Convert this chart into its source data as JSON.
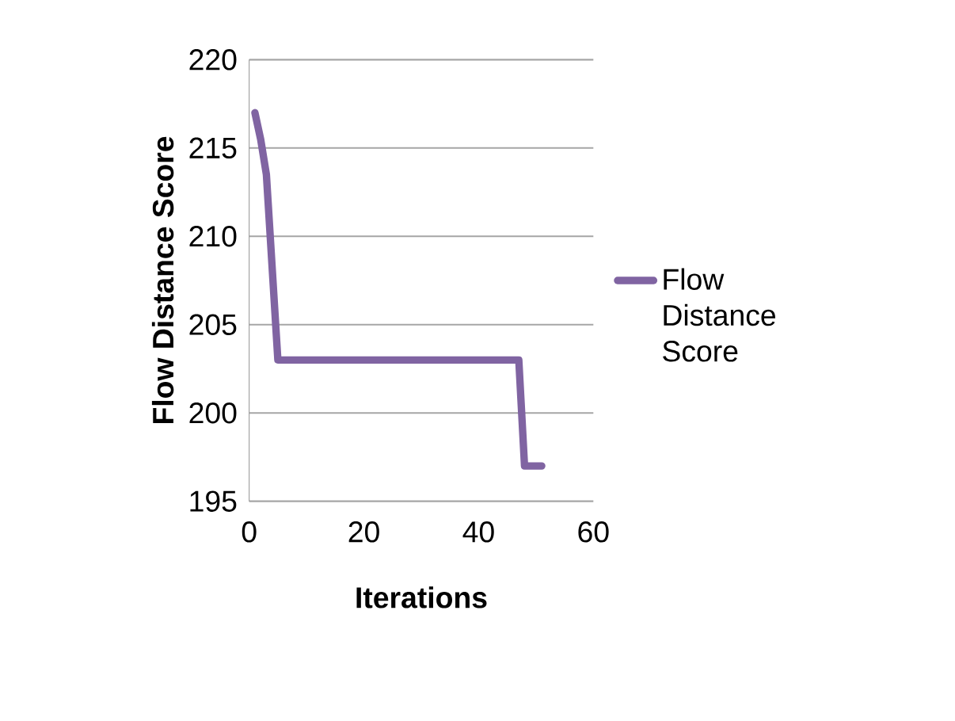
{
  "chart_data": {
    "type": "line",
    "xlabel": "Iterations",
    "ylabel": "Flow Distance Score",
    "series": [
      {
        "name": "Flow Distance Score",
        "color": "#8064a2",
        "x": [
          1,
          2,
          3,
          5,
          47,
          48,
          51
        ],
        "values": [
          217,
          215.5,
          213.5,
          203,
          203,
          197,
          197
        ]
      }
    ],
    "xlim": [
      0,
      60
    ],
    "xticks": [
      0,
      20,
      40,
      60
    ],
    "ylim": [
      195,
      220
    ],
    "yticks": [
      195,
      200,
      205,
      210,
      215,
      220
    ],
    "grid": "y",
    "legend": "right",
    "marker": "none",
    "line_style": "solid"
  }
}
